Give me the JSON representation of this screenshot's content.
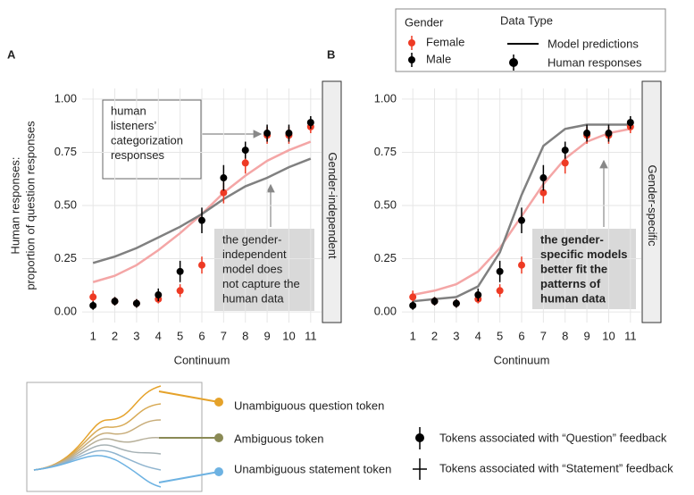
{
  "chart_data": [
    {
      "type": "line",
      "panel": "A",
      "facet": "Gender-independent",
      "ylabel": [
        "Human responses:",
        "proportion of question responses"
      ],
      "xlabel": "Continuum",
      "x": [
        1,
        2,
        3,
        4,
        5,
        6,
        7,
        8,
        9,
        10,
        11
      ],
      "xlim": [
        0.5,
        11.5
      ],
      "xticks": [
        1,
        2,
        3,
        4,
        5,
        6,
        7,
        8,
        9,
        10,
        11
      ],
      "ylim": [
        -0.05,
        1.05
      ],
      "yticks": [
        {
          "value": 0,
          "label": "0.00"
        },
        {
          "value": 0.25,
          "label": "0.25"
        },
        {
          "value": 0.5,
          "label": "0.50"
        },
        {
          "value": 0.75,
          "label": "0.75"
        },
        {
          "value": 1,
          "label": "1.00"
        }
      ],
      "grid": true,
      "series": [
        {
          "name": "Female",
          "color": "#ee3a24",
          "model_color": "#f4a6a6",
          "values": [
            0.07,
            0.05,
            0.04,
            0.06,
            0.1,
            0.22,
            0.56,
            0.7,
            0.83,
            0.83,
            0.87
          ],
          "error": [
            0.03,
            0.02,
            0.02,
            0.02,
            0.03,
            0.04,
            0.05,
            0.05,
            0.04,
            0.04,
            0.03
          ],
          "model": [
            0.14,
            0.17,
            0.22,
            0.29,
            0.37,
            0.46,
            0.56,
            0.64,
            0.71,
            0.76,
            0.8
          ]
        },
        {
          "name": "Male",
          "color": "#000000",
          "model_color": "#808080",
          "values": [
            0.03,
            0.05,
            0.04,
            0.08,
            0.19,
            0.43,
            0.63,
            0.76,
            0.84,
            0.84,
            0.89
          ],
          "error": [
            0.02,
            0.02,
            0.02,
            0.03,
            0.05,
            0.06,
            0.06,
            0.04,
            0.04,
            0.04,
            0.03
          ],
          "model": [
            0.23,
            0.26,
            0.3,
            0.35,
            0.4,
            0.46,
            0.53,
            0.59,
            0.63,
            0.68,
            0.72
          ]
        }
      ],
      "annotations": [
        {
          "lines": [
            "human",
            "listeners’",
            "categorization",
            "responses"
          ]
        },
        {
          "lines": [
            "the gender-",
            "independent",
            "model does",
            "not capture the",
            "human data"
          ]
        }
      ]
    },
    {
      "type": "line",
      "panel": "B",
      "facet": "Gender-specific",
      "xlabel": "Continuum",
      "x": [
        1,
        2,
        3,
        4,
        5,
        6,
        7,
        8,
        9,
        10,
        11
      ],
      "xlim": [
        0.5,
        11.5
      ],
      "xticks": [
        1,
        2,
        3,
        4,
        5,
        6,
        7,
        8,
        9,
        10,
        11
      ],
      "ylim": [
        -0.05,
        1.05
      ],
      "yticks": [
        {
          "value": 0,
          "label": "0.00"
        },
        {
          "value": 0.25,
          "label": "0.25"
        },
        {
          "value": 0.5,
          "label": "0.50"
        },
        {
          "value": 0.75,
          "label": "0.75"
        },
        {
          "value": 1,
          "label": "1.00"
        }
      ],
      "grid": true,
      "series": [
        {
          "name": "Female",
          "color": "#ee3a24",
          "model_color": "#f4a6a6",
          "values": [
            0.07,
            0.05,
            0.04,
            0.06,
            0.1,
            0.22,
            0.56,
            0.7,
            0.83,
            0.83,
            0.87
          ],
          "error": [
            0.03,
            0.02,
            0.02,
            0.02,
            0.03,
            0.04,
            0.05,
            0.05,
            0.04,
            0.04,
            0.03
          ],
          "model": [
            0.08,
            0.1,
            0.13,
            0.19,
            0.3,
            0.45,
            0.6,
            0.72,
            0.8,
            0.84,
            0.86
          ]
        },
        {
          "name": "Male",
          "color": "#000000",
          "model_color": "#808080",
          "values": [
            0.03,
            0.05,
            0.04,
            0.08,
            0.19,
            0.43,
            0.63,
            0.76,
            0.84,
            0.84,
            0.89
          ],
          "error": [
            0.02,
            0.02,
            0.02,
            0.03,
            0.05,
            0.06,
            0.06,
            0.04,
            0.04,
            0.04,
            0.03
          ],
          "model": [
            0.05,
            0.06,
            0.07,
            0.12,
            0.28,
            0.55,
            0.78,
            0.86,
            0.88,
            0.88,
            0.88
          ]
        }
      ],
      "annotations": [
        {
          "lines": [
            "the gender-",
            "specific models",
            "better fit the",
            "patterns of",
            "human data"
          ]
        }
      ]
    }
  ],
  "legend": {
    "gender_title": "Gender",
    "type_title": "Data Type",
    "model_label": "Model predictions",
    "human_label": "Human responses"
  },
  "bottom_legend": {
    "tokens": [
      "Unambiguous question token",
      "Ambiguous token",
      "Unambiguous statement token"
    ],
    "feedback": [
      "Tokens associated with “Question” feedback",
      "Tokens associated with “Statement” feedback"
    ]
  }
}
